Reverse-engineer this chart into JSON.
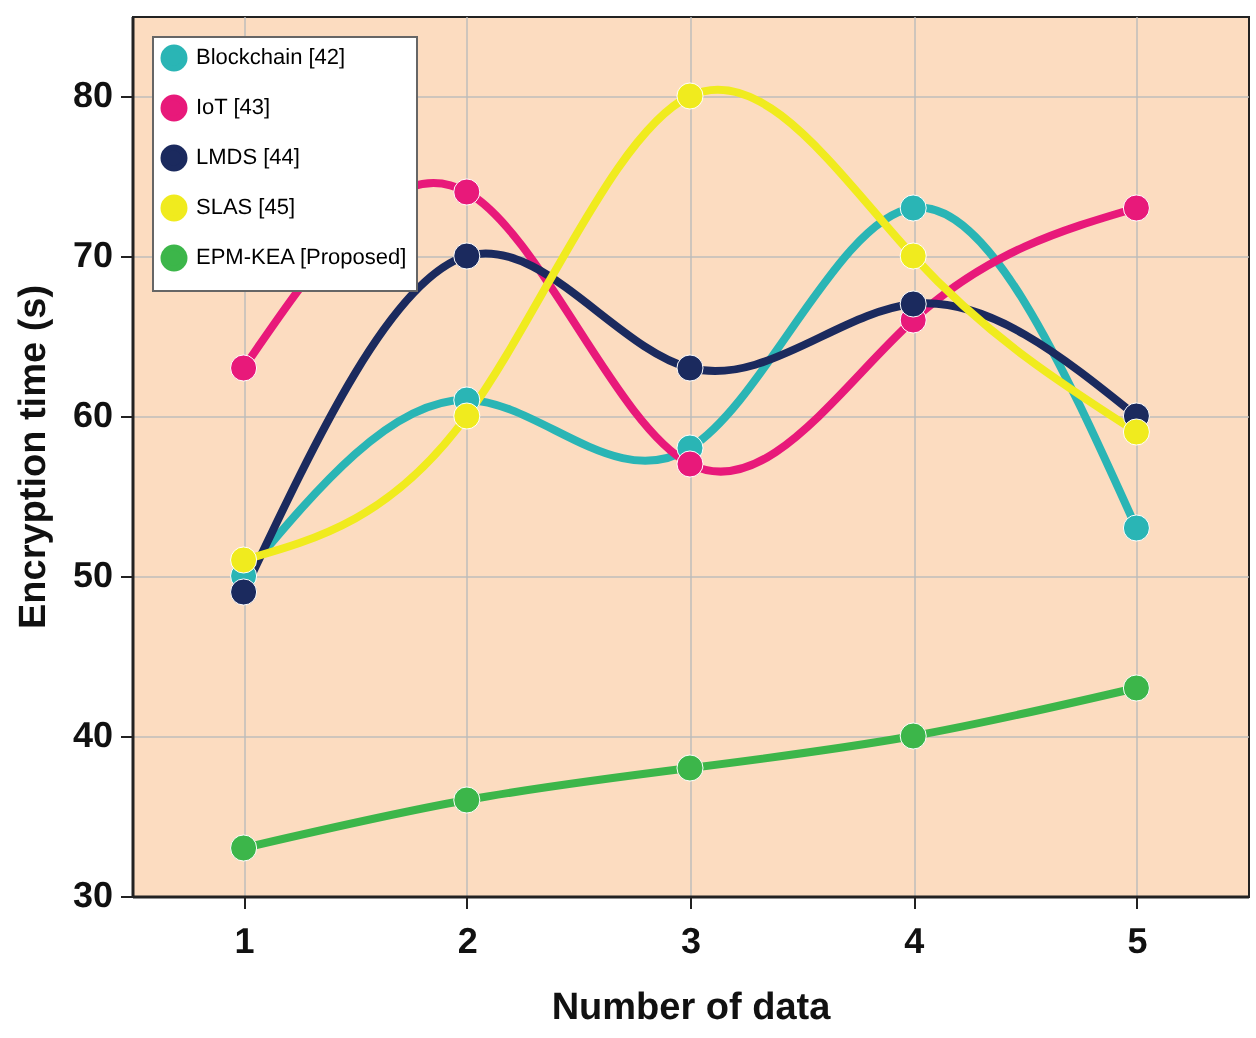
{
  "chart_data": {
    "type": "line",
    "xlabel": "Number of data",
    "ylabel": "Encryption time (s)",
    "x": [
      1,
      2,
      3,
      4,
      5
    ],
    "series": [
      {
        "name": "Blockchain [42]",
        "color": "#2ab5b5",
        "values": [
          50,
          61,
          58,
          73,
          53
        ]
      },
      {
        "name": "IoT [43]",
        "color": "#e8197a",
        "values": [
          63,
          74,
          57,
          66,
          73
        ]
      },
      {
        "name": "LMDS [44]",
        "color": "#1b2a5e",
        "values": [
          49,
          70,
          63,
          67,
          60
        ]
      },
      {
        "name": "SLAS [45]",
        "color": "#f0eb1e",
        "values": [
          51,
          60,
          80,
          70,
          59
        ]
      },
      {
        "name": "EPM-KEA [Proposed]",
        "color": "#3cb64a",
        "values": [
          33,
          36,
          38,
          40,
          43
        ]
      }
    ],
    "xlim": [
      0.5,
      5.5
    ],
    "xticks": [
      1,
      2,
      3,
      4,
      5
    ],
    "ylim": [
      30,
      85
    ],
    "yticks": [
      30,
      40,
      50,
      60,
      70,
      80
    ],
    "grid": true,
    "legend": "top left",
    "marker": "circle",
    "line_style": "solid"
  }
}
